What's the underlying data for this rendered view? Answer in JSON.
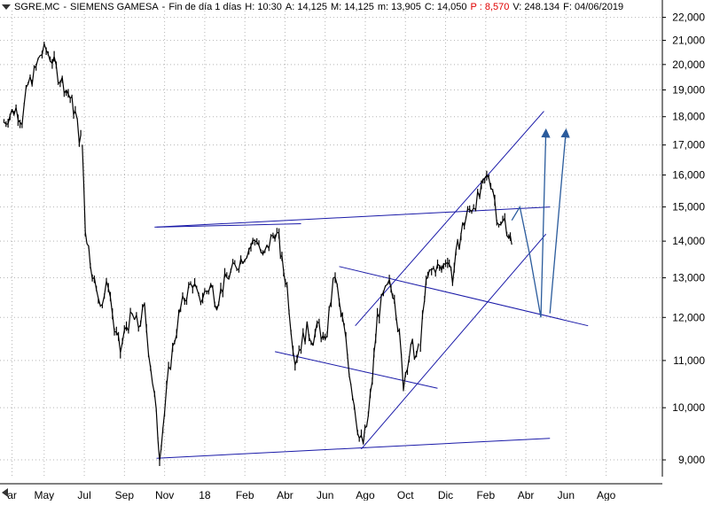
{
  "header": {
    "ticker": "SGRE.MC",
    "separator": "-",
    "name": "SIEMENS GAMESA",
    "separator2": "-",
    "period": "Fin de día 1 días",
    "hour": "H: 10:30",
    "open": "A: 14,125",
    "high": "M: 14,125",
    "low": "m: 13,905",
    "close": "C: 14,050",
    "change": "P : 8,570",
    "volume": "V: 248.134",
    "date": "F: 04/06/2019"
  },
  "colors": {
    "price": "#000000",
    "trendline": "#1a1aa8",
    "projection": "#2a5b9c",
    "grid": "#b5b5b5",
    "negative": "#e00000"
  },
  "chart_data": {
    "type": "line",
    "subtype": "daily price bars (high-low)",
    "x_axis": {
      "labels": [
        "ar",
        "May",
        "Jul",
        "Sep",
        "Nov",
        "18",
        "Feb",
        "Abr",
        "Jun",
        "Ago",
        "Oct",
        "Dic",
        "Feb",
        "Abr",
        "Jun",
        "Ago"
      ],
      "t": [
        1.4,
        3.0,
        5.0,
        7.0,
        9.0,
        11.0,
        13.0,
        15.0,
        17.0,
        19.0,
        21.0,
        23.0,
        25.0,
        27.0,
        29.0,
        31.0
      ],
      "range": [
        0.8,
        33.8
      ]
    },
    "y_axis": {
      "scale": "log",
      "labels": [
        "9,000",
        "10,000",
        "11,000",
        "12,000",
        "13,000",
        "14,000",
        "15,000",
        "16,000",
        "17,000",
        "18,000",
        "19,000",
        "20,000",
        "21,000",
        "22,000"
      ],
      "values": [
        9,
        10,
        11,
        12,
        13,
        14,
        15,
        16,
        17,
        18,
        19,
        20,
        21,
        22
      ],
      "range": [
        8.7,
        22.3
      ],
      "position": "right"
    },
    "grid": true,
    "series": [
      {
        "points": [
          [
            1.0,
            17.8
          ],
          [
            1.3,
            18.1
          ],
          [
            1.6,
            18.3
          ],
          [
            1.9,
            17.9
          ],
          [
            2.2,
            19.2
          ],
          [
            2.5,
            19.6
          ],
          [
            2.8,
            20.4
          ],
          [
            3.1,
            20.6
          ],
          [
            3.4,
            20.2
          ],
          [
            3.7,
            19.6
          ],
          [
            4.0,
            19.2
          ],
          [
            4.3,
            18.7
          ],
          [
            4.55,
            18.1
          ],
          [
            4.75,
            17.3
          ],
          [
            4.9,
            17.0
          ],
          [
            5.05,
            14.4
          ],
          [
            5.3,
            13.5
          ],
          [
            5.6,
            12.6
          ],
          [
            5.9,
            12.4
          ],
          [
            6.2,
            12.9
          ],
          [
            6.5,
            11.7
          ],
          [
            6.8,
            11.2
          ],
          [
            7.1,
            11.8
          ],
          [
            7.4,
            12.0
          ],
          [
            7.7,
            11.8
          ],
          [
            8.0,
            12.2
          ],
          [
            8.2,
            11.3
          ],
          [
            8.5,
            10.2
          ],
          [
            8.75,
            9.1
          ],
          [
            9.0,
            9.9
          ],
          [
            9.2,
            10.7
          ],
          [
            9.5,
            11.5
          ],
          [
            9.8,
            12.2
          ],
          [
            10.1,
            12.6
          ],
          [
            10.4,
            12.9
          ],
          [
            10.7,
            12.4
          ],
          [
            11.0,
            12.6
          ],
          [
            11.3,
            12.8
          ],
          [
            11.6,
            12.4
          ],
          [
            12.0,
            12.9
          ],
          [
            12.4,
            13.2
          ],
          [
            12.8,
            13.5
          ],
          [
            13.2,
            13.8
          ],
          [
            13.6,
            14.1
          ],
          [
            13.9,
            13.5
          ],
          [
            14.2,
            13.9
          ],
          [
            14.5,
            14.3
          ],
          [
            14.7,
            14.0
          ],
          [
            14.85,
            13.4
          ],
          [
            15.1,
            12.8
          ],
          [
            15.3,
            11.8
          ],
          [
            15.5,
            11.0
          ],
          [
            15.8,
            11.4
          ],
          [
            16.1,
            11.7
          ],
          [
            16.4,
            11.5
          ],
          [
            16.7,
            11.8
          ],
          [
            17.0,
            11.3
          ],
          [
            17.3,
            12.5
          ],
          [
            17.5,
            13.1
          ],
          [
            17.7,
            12.3
          ],
          [
            17.95,
            11.7
          ],
          [
            18.2,
            10.8
          ],
          [
            18.45,
            10.1
          ],
          [
            18.7,
            9.4
          ],
          [
            18.9,
            9.3
          ],
          [
            19.15,
            9.8
          ],
          [
            19.35,
            10.6
          ],
          [
            19.6,
            12.0
          ],
          [
            19.9,
            12.5
          ],
          [
            20.2,
            12.8
          ],
          [
            20.45,
            12.6
          ],
          [
            20.7,
            11.5
          ],
          [
            20.9,
            10.5
          ],
          [
            21.1,
            11.0
          ],
          [
            21.35,
            11.3
          ],
          [
            21.55,
            11.1
          ],
          [
            21.75,
            11.3
          ],
          [
            21.95,
            12.6
          ],
          [
            22.2,
            13.1
          ],
          [
            22.5,
            13.3
          ],
          [
            22.8,
            13.2
          ],
          [
            23.1,
            13.6
          ],
          [
            23.35,
            13.0
          ],
          [
            23.6,
            13.8
          ],
          [
            23.85,
            14.4
          ],
          [
            24.1,
            14.8
          ],
          [
            24.4,
            15.1
          ],
          [
            24.7,
            15.3
          ],
          [
            24.95,
            15.8
          ],
          [
            25.15,
            16.0
          ],
          [
            25.35,
            15.6
          ],
          [
            25.55,
            14.8
          ],
          [
            25.75,
            14.4
          ],
          [
            25.95,
            14.6
          ],
          [
            26.15,
            14.2
          ],
          [
            26.3,
            13.9
          ]
        ]
      }
    ],
    "trendlines": [
      {
        "from": [
          8.6,
          14.4
        ],
        "to": [
          15.8,
          14.5
        ]
      },
      {
        "from": [
          8.6,
          9.03
        ],
        "to": [
          28.2,
          9.4
        ]
      },
      {
        "from": [
          17.7,
          13.3
        ],
        "to": [
          30.1,
          11.8
        ]
      },
      {
        "from": [
          14.5,
          11.2
        ],
        "to": [
          22.6,
          10.4
        ]
      },
      {
        "from": [
          18.5,
          11.8
        ],
        "to": [
          27.9,
          18.2
        ]
      },
      {
        "from": [
          18.8,
          9.2
        ],
        "to": [
          28.0,
          14.2
        ]
      },
      {
        "from": [
          8.5,
          14.4
        ],
        "to": [
          28.2,
          15.0
        ]
      }
    ],
    "projections": [
      {
        "path": [
          [
            26.3,
            14.6
          ],
          [
            26.7,
            15.0
          ],
          [
            27.2,
            13.6
          ],
          [
            27.75,
            12.0
          ],
          [
            28.0,
            17.5
          ]
        ]
      },
      {
        "path": [
          [
            28.2,
            12.1
          ],
          [
            29.0,
            17.5
          ]
        ]
      }
    ]
  }
}
